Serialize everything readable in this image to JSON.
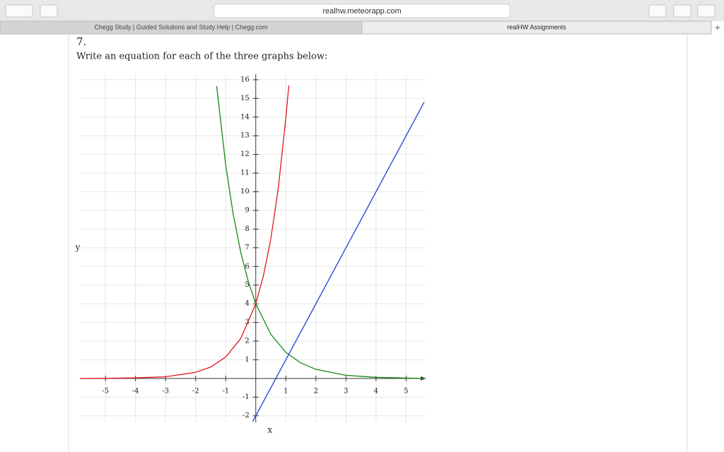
{
  "browser": {
    "url": "realhw.meteorapp.com",
    "tabs": [
      "Chegg Study | Guided Solutions and Study Help | Chegg.com",
      "realHW Assignments"
    ]
  },
  "question": {
    "number": "7.",
    "text": "Write an equation for each of the three graphs below:"
  },
  "chart_data": {
    "type": "line",
    "x_label": "x",
    "y_label": "y",
    "xlim": [
      -5.85,
      5.65
    ],
    "ylim": [
      -2.35,
      16.3
    ],
    "xticks": [
      -5,
      -4,
      -3,
      -2,
      -1,
      1,
      2,
      3,
      4,
      5
    ],
    "yticks": [
      -2,
      -1,
      1,
      2,
      3,
      4,
      5,
      6,
      7,
      8,
      9,
      10,
      11,
      12,
      13,
      14,
      15,
      16
    ],
    "grid": true,
    "series": [
      {
        "color": "#e0161b",
        "x": [
          -5.85,
          -5,
          -4,
          -3,
          -2,
          -1.5,
          -1,
          -0.5,
          0,
          0.25,
          0.5,
          0.75,
          1,
          1.1
        ],
        "values": [
          0,
          0.01,
          0.03,
          0.09,
          0.33,
          0.61,
          1.15,
          2.14,
          4,
          5.47,
          7.47,
          10.2,
          13.96,
          15.7
        ]
      },
      {
        "color": "#128a12",
        "x": [
          -1.3,
          -1,
          -0.75,
          -0.5,
          -0.25,
          0,
          0.5,
          1,
          1.5,
          2,
          3,
          4,
          5.65
        ],
        "values": [
          15.66,
          11.43,
          8.79,
          6.76,
          5.2,
          4,
          2.37,
          1.4,
          0.83,
          0.49,
          0.17,
          0.06,
          0
        ]
      },
      {
        "color": "#1f3fd6",
        "x": [
          -0.1,
          5.6
        ],
        "values": [
          -2.3,
          14.8
        ]
      }
    ]
  }
}
